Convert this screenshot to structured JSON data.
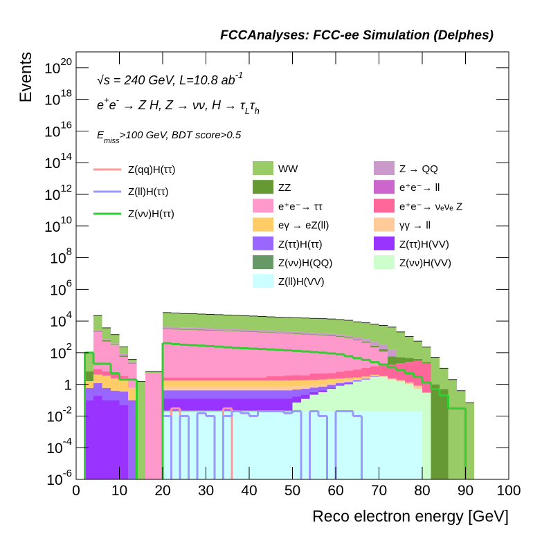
{
  "chart_data": {
    "type": "stacked-histogram",
    "title": "FCCAnalyses: FCC-ee Simulation (Delphes)",
    "annotations": [
      [
        {
          "text": "√s = 240 GeV, L=10.8 ab"
        },
        {
          "text": "-1",
          "script": "sup"
        }
      ],
      [
        {
          "text": "e"
        },
        {
          "text": "+",
          "script": "sup"
        },
        {
          "text": "e"
        },
        {
          "text": "-",
          "script": "sup"
        },
        {
          "text": " → Z H, Z  → νν, H → τ"
        },
        {
          "text": "L",
          "script": "sub"
        },
        {
          "text": "τ"
        },
        {
          "text": "h",
          "script": "sub"
        }
      ],
      [
        {
          "text": "E"
        },
        {
          "text": "miss",
          "script": "sub"
        },
        {
          "text": ">100 GeV, BDT score>0.5"
        }
      ]
    ],
    "x_label": "Reco electron energy [GeV]",
    "y_label": "Events",
    "log_y": true,
    "xlim": [
      0,
      100
    ],
    "xticks": [
      0,
      10,
      20,
      30,
      40,
      50,
      60,
      70,
      80,
      90,
      100
    ],
    "ylim": [
      1e-06,
      1e+21
    ],
    "yticks": [
      {
        "value": 1e-06,
        "label": "10",
        "exponent": "-6"
      },
      {
        "value": 0.0001,
        "label": "10",
        "exponent": "-4"
      },
      {
        "value": 0.01,
        "label": "10",
        "exponent": "-2"
      },
      1,
      {
        "value": 100,
        "label": "10",
        "exponent": "2"
      },
      {
        "value": 10000.0,
        "label": "10",
        "exponent": "4"
      },
      {
        "value": 1000000.0,
        "label": "10",
        "exponent": "6"
      },
      {
        "value": 100000000.0,
        "label": "10",
        "exponent": "8"
      },
      {
        "value": 10000000000.0,
        "label": "10",
        "exponent": "10"
      },
      {
        "value": 1000000000000.0,
        "label": "10",
        "exponent": "12"
      },
      {
        "value": 100000000000000.0,
        "label": "10",
        "exponent": "14"
      },
      {
        "value": 1e+16,
        "label": "10",
        "exponent": "16"
      },
      {
        "value": 1e+18,
        "label": "10",
        "exponent": "18"
      },
      {
        "value": 1e+20,
        "label": "10",
        "exponent": "20"
      }
    ],
    "bins": [
      2,
      4,
      6,
      8,
      10,
      12,
      14,
      16,
      18,
      20,
      22,
      24,
      26,
      28,
      30,
      32,
      34,
      36,
      38,
      40,
      42,
      44,
      46,
      48,
      50,
      52,
      54,
      56,
      58,
      60,
      62,
      64,
      66,
      68,
      70,
      72,
      74,
      76,
      78,
      80,
      82,
      84,
      86,
      88,
      90,
      92
    ],
    "series": [
      {
        "name": "WW",
        "color": "#99cc66",
        "values": [
          100,
          20000.0,
          3000.0,
          1000.0,
          150,
          10,
          1.5,
          1.5,
          1.5,
          30000.0,
          28000.0,
          26000.0,
          25000.0,
          24000.0,
          23000.0,
          22000.0,
          21000.0,
          20000.0,
          19000.0,
          18000.0,
          17000.0,
          16000.0,
          15000.0,
          14500.0,
          14000.0,
          13500.0,
          13000.0,
          12500.0,
          12000.0,
          11000.0,
          10000.0,
          8000.0,
          7000.0,
          6000.0,
          5000.0,
          4000.0,
          2000.0,
          1000.0,
          500,
          200,
          50,
          10,
          2,
          0.4,
          0.07
        ]
      },
      {
        "name": "Z → QQ",
        "color": "#cc99cc",
        "values": [
          null,
          300,
          100,
          50,
          20,
          5,
          null,
          null,
          null,
          1000,
          950,
          900,
          850,
          800,
          750,
          700,
          650,
          600,
          550,
          500,
          480,
          460,
          440,
          420,
          400,
          380,
          360,
          340,
          320,
          300,
          280,
          260,
          240,
          200,
          150,
          100,
          null,
          null,
          null,
          null,
          null,
          null,
          null,
          null,
          null
        ]
      },
      {
        "name": "ZZ",
        "color": "#669933",
        "values": [
          5,
          100,
          100,
          30,
          10,
          2,
          null,
          null,
          null,
          300,
          300,
          280,
          270,
          260,
          250,
          240,
          230,
          220,
          210,
          200,
          190,
          180,
          170,
          160,
          150,
          140,
          130,
          120,
          110,
          100,
          90,
          80,
          70,
          60,
          50,
          40,
          30,
          20,
          10,
          5,
          1,
          0.5,
          null,
          null,
          null
        ]
      },
      {
        "name": "e⁺e⁻→ ll",
        "color": "#cc66cc",
        "values": [
          null,
          20,
          10,
          5,
          null,
          null,
          null,
          null,
          null,
          5,
          5,
          5,
          5,
          5,
          5,
          5,
          5,
          5,
          5,
          5,
          5,
          5,
          5,
          5,
          5,
          5,
          5,
          5,
          5,
          4,
          4,
          3,
          3,
          2,
          2,
          null,
          null,
          null,
          null,
          null,
          null,
          null,
          null,
          null,
          null
        ]
      },
      {
        "name": "e⁺e⁻→ ττ",
        "color": "#ff99cc",
        "values": [
          null,
          2000,
          500,
          300,
          50,
          20,
          null,
          5,
          5,
          3000,
          2900,
          2800,
          2700,
          2600,
          2500,
          2400,
          2300,
          2200,
          2100,
          2000,
          1900,
          1800,
          1700,
          1600,
          1500,
          1400,
          1300,
          1200,
          1100,
          1000,
          800,
          600,
          400,
          200,
          100,
          null,
          null,
          null,
          null,
          null,
          null,
          null,
          null,
          null,
          null
        ]
      },
      {
        "name": "e⁺e⁻→ νₑνₑ Z",
        "color": "#ff6699",
        "values": [
          null,
          5,
          3,
          2,
          1,
          null,
          null,
          null,
          null,
          1,
          1,
          1,
          1,
          1,
          1,
          1,
          1,
          1,
          1,
          1,
          1,
          1.5,
          1.5,
          2,
          2,
          2,
          3,
          3,
          3,
          4,
          5,
          6,
          8,
          10,
          12,
          15,
          20,
          25,
          30,
          20,
          null,
          null,
          null,
          null,
          null
        ]
      },
      {
        "name": "eγ → eZ(ll)",
        "color": "#ffcc66",
        "values": [
          1,
          3,
          3,
          2,
          2,
          0.5,
          null,
          null,
          null,
          1,
          1,
          1,
          1,
          1,
          1,
          1,
          1,
          1,
          1,
          1,
          1,
          1,
          1,
          1,
          1,
          1,
          1,
          1,
          1,
          0.8,
          0.8,
          0.6,
          0.5,
          0.4,
          null,
          null,
          null,
          null,
          null,
          null,
          null,
          null,
          null,
          null,
          null
        ]
      },
      {
        "name": "γγ → ll",
        "color": "#ffcc99",
        "values": [
          null,
          null,
          null,
          null,
          null,
          null,
          null,
          null,
          null,
          0.3,
          0.3,
          0.3,
          0.3,
          0.3,
          0.3,
          0.3,
          0.3,
          0.3,
          0.3,
          0.3,
          0.3,
          0.3,
          0.3,
          0.3,
          0.3,
          0.3,
          0.3,
          0.3,
          0.3,
          0.3,
          0.3,
          0.3,
          0.3,
          0.3,
          0.3,
          0.3,
          0.3,
          0.3,
          0.3,
          null,
          null,
          null,
          null,
          null,
          null
        ]
      },
      {
        "name": "Z(ττ)H(ττ)",
        "color": "#9966ff",
        "values": [
          0.5,
          1,
          0.5,
          0.3,
          0.3,
          0.1,
          null,
          null,
          null,
          0.3,
          0.3,
          0.3,
          0.3,
          0.3,
          0.3,
          0.3,
          0.3,
          0.3,
          0.3,
          0.3,
          0.3,
          0.3,
          0.3,
          0.3,
          0.3,
          0.3,
          0.3,
          0.3,
          0.3,
          0.3,
          0.3,
          0.3,
          0.3,
          0.3,
          null,
          null,
          null,
          null,
          null,
          null,
          null,
          null,
          null,
          null,
          null
        ]
      },
      {
        "name": "Z(ττ)H(VV)",
        "color": "#9933ff",
        "values": [
          0.1,
          0.2,
          0.1,
          0.1,
          0.05,
          null,
          null,
          null,
          null,
          0.1,
          0.1,
          0.1,
          0.1,
          0.1,
          0.1,
          0.1,
          0.1,
          0.1,
          0.1,
          0.1,
          0.1,
          0.1,
          0.1,
          0.1,
          0.1,
          0.1,
          0.1,
          0.1,
          0.1,
          0.1,
          0.1,
          null,
          null,
          null,
          null,
          null,
          null,
          null,
          null,
          null,
          null,
          null,
          null,
          null,
          null
        ]
      },
      {
        "name": "Z(νν)H(QQ)",
        "color": "#669966",
        "values": [
          null,
          null,
          null,
          null,
          null,
          null,
          null,
          null,
          null,
          0.003,
          0.003,
          0.003,
          0.003,
          0.003,
          0.003,
          0.003,
          0.003,
          0.003,
          0.003,
          0.003,
          0.003,
          0.003,
          0.003,
          0.003,
          0.003,
          0.003,
          0.003,
          0.003,
          0.003,
          0.003,
          0.003,
          0.003,
          0.003,
          0.003,
          0.003,
          0.003,
          0.003,
          0.003,
          0.003,
          null,
          null,
          null,
          null,
          null,
          null
        ]
      },
      {
        "name": "Z(νν)H(VV)",
        "color": "#ccffcc",
        "values": [
          null,
          null,
          null,
          null,
          null,
          null,
          null,
          null,
          null,
          null,
          null,
          null,
          null,
          null,
          null,
          null,
          null,
          null,
          null,
          null,
          null,
          null,
          null,
          null,
          0.05,
          0.1,
          0.2,
          0.3,
          0.5,
          0.8,
          1,
          1.5,
          2,
          3,
          3,
          2,
          1.5,
          1,
          0.5,
          0.3,
          null,
          null,
          null,
          null,
          null
        ]
      },
      {
        "name": "Z(ll)H(VV)",
        "color": "#ccffff",
        "values": [
          null,
          null,
          null,
          null,
          null,
          null,
          null,
          null,
          null,
          0.02,
          0.02,
          0.02,
          0.02,
          0.02,
          0.02,
          0.02,
          0.02,
          0.02,
          0.02,
          0.02,
          0.02,
          0.02,
          0.02,
          0.02,
          0.02,
          0.02,
          0.02,
          0.02,
          0.02,
          0.02,
          0.02,
          0.02,
          0.02,
          0.02,
          0.02,
          0.02,
          0.02,
          0.02,
          0.02,
          null,
          null,
          null,
          null,
          null,
          null
        ]
      }
    ],
    "lines": [
      {
        "name": "Z(qq)H(ττ)",
        "color": "#ff9999",
        "values": [
          null,
          null,
          null,
          null,
          null,
          null,
          null,
          null,
          null,
          null,
          0.03,
          null,
          null,
          null,
          null,
          null,
          0.03,
          null,
          null,
          null,
          null,
          null,
          null,
          null,
          null,
          null,
          null,
          null,
          null,
          null,
          null,
          null,
          null,
          null,
          null,
          null,
          null,
          null,
          null,
          null,
          null,
          null,
          null,
          null,
          null
        ]
      },
      {
        "name": "Z(ll)H(ττ)",
        "color": "#9999ff",
        "values": [
          null,
          null,
          null,
          null,
          null,
          null,
          null,
          null,
          null,
          0.01,
          null,
          0.01,
          null,
          0.015,
          0.01,
          null,
          0.01,
          0.02,
          0.015,
          0.01,
          0.02,
          0.02,
          0.02,
          0.015,
          0.02,
          null,
          0.02,
          0.01,
          null,
          0.02,
          0.02,
          0.01,
          null,
          null,
          null,
          null,
          null,
          null,
          null,
          null,
          null,
          null,
          null,
          null,
          null
        ]
      },
      {
        "name": "Z(νν)H(ττ)",
        "color": "#33cc33",
        "values": [
          100,
          20,
          20,
          5,
          2,
          2,
          null,
          null,
          null,
          400,
          350,
          320,
          300,
          280,
          260,
          240,
          220,
          200,
          190,
          180,
          170,
          160,
          150,
          140,
          130,
          120,
          110,
          100,
          90,
          80,
          60,
          45,
          35,
          25,
          18,
          12,
          8,
          5,
          3,
          1.3,
          0.5,
          0.2,
          0.03,
          0.03,
          null
        ]
      }
    ]
  }
}
